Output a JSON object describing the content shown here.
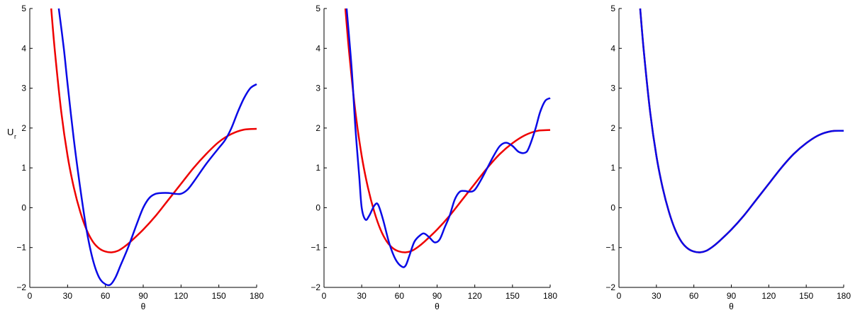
{
  "chart_data": [
    {
      "type": "line",
      "x_label": "θ",
      "y_label": "U",
      "y_label_subscript": "r",
      "xlim": [
        0,
        180
      ],
      "xticks": [
        0,
        30,
        60,
        90,
        120,
        150,
        180
      ],
      "ylim": [
        -2,
        5
      ],
      "yticks": [
        {
          "value": -2,
          "label": "−2"
        },
        {
          "value": -1,
          "label": "−1"
        },
        0,
        1,
        2,
        3,
        4,
        5
      ],
      "series": [
        {
          "color": "#ee0000",
          "x": [
            17,
            20,
            25,
            30,
            35,
            40,
            45,
            50,
            55,
            60,
            65,
            70,
            75,
            80,
            90,
            100,
            110,
            120,
            130,
            140,
            150,
            160,
            170,
            180
          ],
          "values": [
            5,
            3.9,
            2.4,
            1.3,
            0.5,
            -0.1,
            -0.55,
            -0.85,
            -1.02,
            -1.1,
            -1.12,
            -1.08,
            -0.98,
            -0.85,
            -0.55,
            -0.2,
            0.2,
            0.6,
            1.0,
            1.35,
            1.65,
            1.85,
            1.96,
            1.98
          ]
        },
        {
          "color": "#0a0ae6",
          "x": [
            23,
            27,
            30,
            35,
            40,
            45,
            50,
            55,
            60,
            64,
            68,
            72,
            78,
            85,
            90,
            95,
            100,
            105,
            110,
            115,
            120,
            125,
            130,
            140,
            150,
            155,
            160,
            165,
            170,
            175,
            180
          ],
          "values": [
            5,
            4,
            3.1,
            1.7,
            0.5,
            -0.55,
            -1.3,
            -1.75,
            -1.92,
            -1.93,
            -1.75,
            -1.45,
            -1.0,
            -0.4,
            0.0,
            0.25,
            0.35,
            0.37,
            0.37,
            0.35,
            0.35,
            0.45,
            0.65,
            1.1,
            1.5,
            1.7,
            2.0,
            2.4,
            2.75,
            3.0,
            3.1
          ]
        }
      ]
    },
    {
      "type": "line",
      "x_label": "θ",
      "xlim": [
        0,
        180
      ],
      "xticks": [
        0,
        30,
        60,
        90,
        120,
        150,
        180
      ],
      "ylim": [
        -2,
        5
      ],
      "yticks": [
        {
          "value": -2,
          "label": "−2"
        },
        {
          "value": -1,
          "label": "−1"
        },
        0,
        1,
        2,
        3,
        4,
        5
      ],
      "series": [
        {
          "color": "#ee0000",
          "x": [
            17,
            20,
            25,
            30,
            35,
            40,
            45,
            50,
            55,
            60,
            65,
            70,
            75,
            80,
            90,
            100,
            110,
            120,
            130,
            140,
            150,
            160,
            170,
            180
          ],
          "values": [
            5,
            3.9,
            2.4,
            1.3,
            0.5,
            -0.1,
            -0.55,
            -0.85,
            -1.02,
            -1.1,
            -1.12,
            -1.08,
            -0.98,
            -0.85,
            -0.55,
            -0.2,
            0.2,
            0.6,
            1.0,
            1.35,
            1.62,
            1.82,
            1.93,
            1.95
          ]
        },
        {
          "color": "#0a0ae6",
          "x": [
            18,
            22,
            25,
            28,
            30,
            33,
            36,
            40,
            43,
            47,
            52,
            57,
            62,
            65,
            68,
            72,
            77,
            80,
            84,
            88,
            92,
            96,
            100,
            104,
            108,
            112,
            116,
            120,
            125,
            130,
            135,
            140,
            145,
            150,
            155,
            160,
            163,
            168,
            172,
            176,
            180
          ],
          "values": [
            5,
            3.5,
            2.0,
            0.8,
            0.0,
            -0.3,
            -0.2,
            0.05,
            0.08,
            -0.3,
            -0.9,
            -1.3,
            -1.48,
            -1.45,
            -1.2,
            -0.85,
            -0.68,
            -0.65,
            -0.75,
            -0.87,
            -0.8,
            -0.5,
            -0.2,
            0.2,
            0.4,
            0.42,
            0.4,
            0.45,
            0.7,
            1.0,
            1.3,
            1.55,
            1.63,
            1.55,
            1.4,
            1.38,
            1.5,
            1.95,
            2.4,
            2.68,
            2.75
          ]
        }
      ]
    },
    {
      "type": "line",
      "x_label": "θ",
      "xlim": [
        0,
        180
      ],
      "xticks": [
        0,
        30,
        60,
        90,
        120,
        150,
        180
      ],
      "ylim": [
        -2,
        5
      ],
      "yticks": [
        {
          "value": -2,
          "label": "−2"
        },
        {
          "value": -1,
          "label": "−1"
        },
        0,
        1,
        2,
        3,
        4,
        5
      ],
      "series": [
        {
          "color": "#ee0000",
          "x": [
            17,
            20,
            25,
            30,
            35,
            40,
            45,
            50,
            55,
            60,
            65,
            70,
            75,
            80,
            90,
            100,
            110,
            120,
            130,
            140,
            150,
            160,
            170,
            180
          ],
          "values": [
            5,
            3.9,
            2.4,
            1.3,
            0.5,
            -0.1,
            -0.55,
            -0.85,
            -1.02,
            -1.1,
            -1.12,
            -1.08,
            -0.98,
            -0.85,
            -0.55,
            -0.2,
            0.2,
            0.6,
            1.0,
            1.35,
            1.62,
            1.82,
            1.92,
            1.93
          ]
        },
        {
          "color": "#0a0ae6",
          "x": [
            17,
            20,
            25,
            30,
            35,
            40,
            45,
            50,
            55,
            60,
            65,
            70,
            75,
            80,
            90,
            100,
            110,
            120,
            130,
            140,
            150,
            160,
            170,
            180
          ],
          "values": [
            5,
            3.9,
            2.4,
            1.3,
            0.5,
            -0.1,
            -0.55,
            -0.85,
            -1.02,
            -1.1,
            -1.12,
            -1.08,
            -0.98,
            -0.85,
            -0.55,
            -0.2,
            0.2,
            0.6,
            1.0,
            1.35,
            1.62,
            1.82,
            1.92,
            1.93
          ]
        }
      ]
    }
  ]
}
